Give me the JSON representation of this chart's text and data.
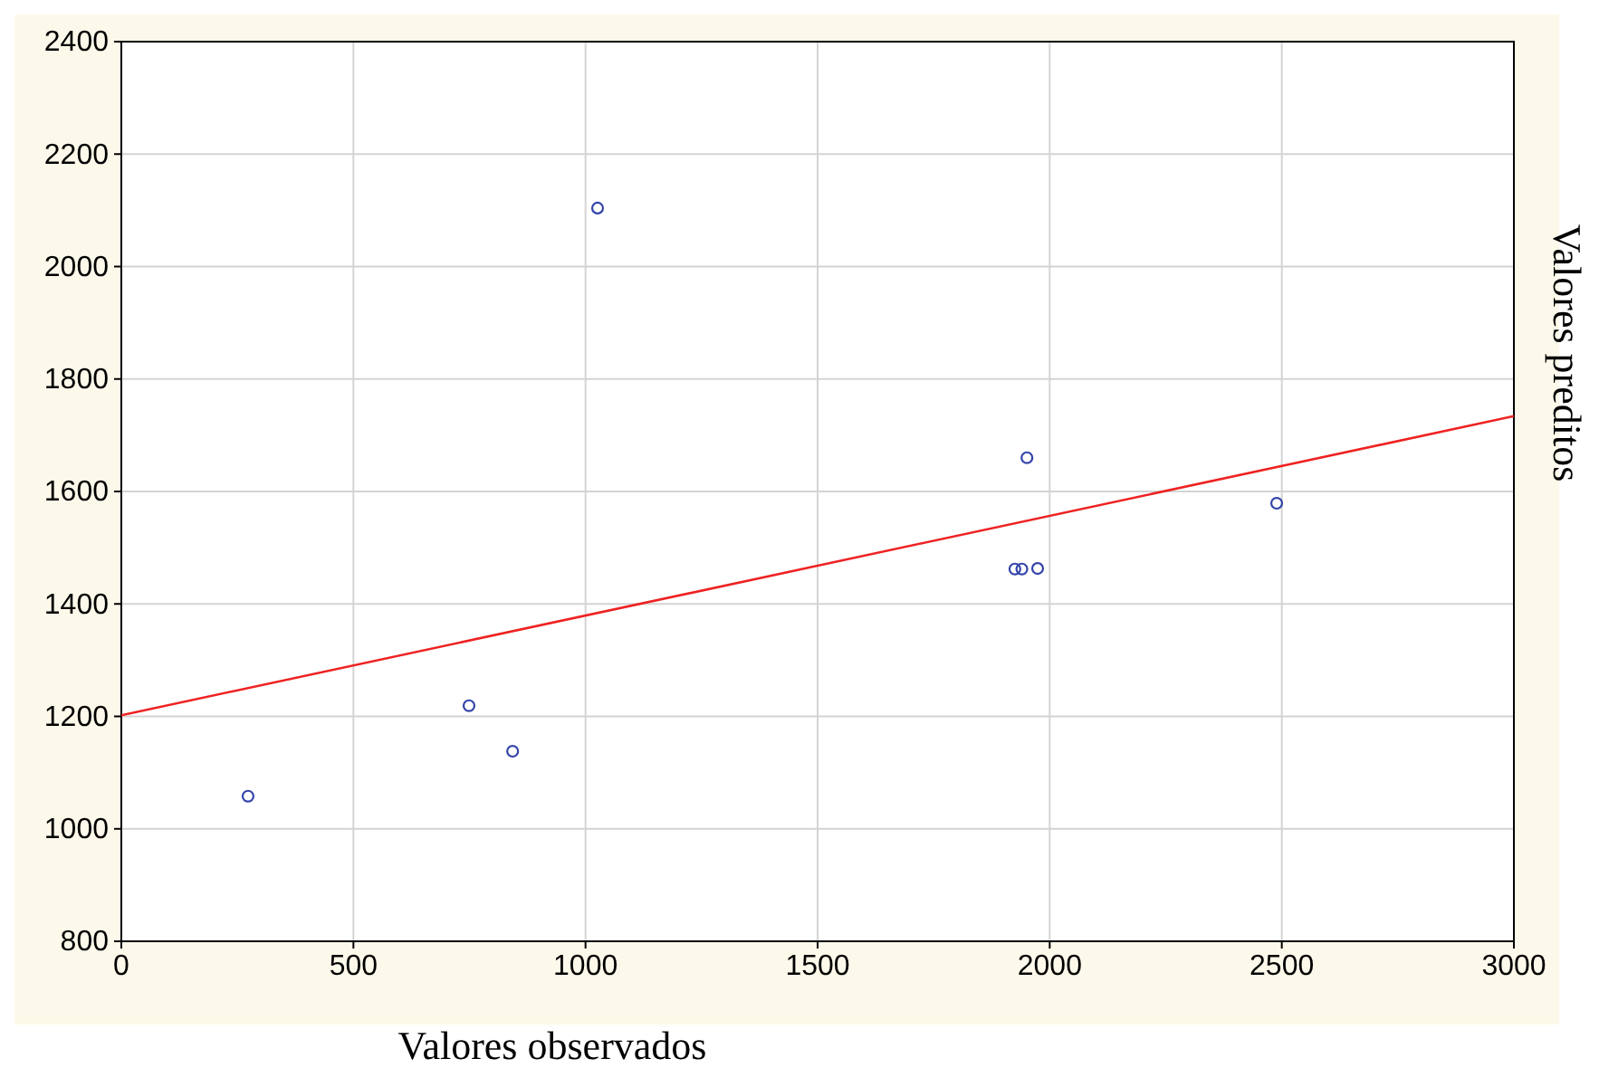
{
  "chart_data": {
    "type": "scatter",
    "xlabel": "Valores observados",
    "ylabel": "Valores preditos",
    "xlim": [
      0,
      3000
    ],
    "xticks": [
      0,
      500,
      1000,
      1500,
      2000,
      2500,
      3000
    ],
    "ylim": [
      800,
      2400
    ],
    "yticks": [
      800,
      1000,
      1200,
      1400,
      1600,
      1800,
      2000,
      2200,
      2400
    ],
    "grid": true,
    "series": [
      {
        "marker": "circle",
        "color": "#3344aa",
        "x": [
          273,
          749,
          843,
          1026,
          1925,
          1940,
          1951,
          1974,
          2489
        ],
        "values": [
          1058,
          1219,
          1138,
          2104,
          1462,
          1462,
          1660,
          1463,
          1579
        ]
      },
      {
        "type": "line",
        "color": "#ee2222",
        "x": [
          0,
          3000
        ],
        "values": [
          1202,
          1734
        ]
      }
    ]
  }
}
